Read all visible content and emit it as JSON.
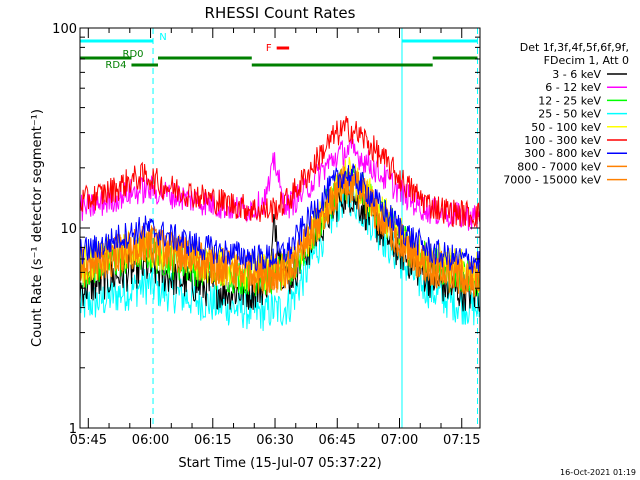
{
  "chart_data": {
    "type": "line",
    "title": "RHESSI Count Rates",
    "xlabel": "Start Time (15-Jul-07 05:37:22)",
    "ylabel": "Count Rate (s⁻¹ detector segment⁻¹)",
    "yscale": "log",
    "ylim": [
      1,
      100
    ],
    "xlim_minutes": [
      5.6,
      102.0
    ],
    "x_ticks": [
      {
        "label": "05:45",
        "minutes": 7.6
      },
      {
        "label": "06:00",
        "minutes": 22.6
      },
      {
        "label": "06:15",
        "minutes": 37.6
      },
      {
        "label": "06:30",
        "minutes": 52.6
      },
      {
        "label": "06:45",
        "minutes": 67.6
      },
      {
        "label": "07:00",
        "minutes": 82.6
      },
      {
        "label": "07:15",
        "minutes": 97.6
      }
    ],
    "y_ticks": [
      {
        "label": "1",
        "value": 1
      },
      {
        "label": "10",
        "value": 10
      },
      {
        "label": "100",
        "value": 100
      }
    ],
    "legend": {
      "placement": "right",
      "header": [
        "Det 1f,3f,4f,5f,6f,9f,",
        "FDecim 1, Att 0"
      ]
    },
    "series": [
      {
        "name": "3 - 6 keV",
        "color": "#000000",
        "x": [
          5.6,
          10,
          15,
          18,
          20,
          22,
          25,
          30,
          35,
          40,
          45,
          48,
          50,
          51.5,
          52.5,
          53.2,
          54.2,
          56,
          60,
          64,
          67,
          69,
          70.5,
          72,
          74,
          77,
          80,
          84,
          87,
          90,
          95,
          100,
          102
        ],
        "values": [
          5,
          5.3,
          5.9,
          6.1,
          6.3,
          6.4,
          6,
          5.5,
          5.1,
          4.9,
          4.8,
          4.9,
          5.2,
          6,
          11,
          9.5,
          6.3,
          5.6,
          7.5,
          10.5,
          13,
          14.5,
          15,
          14,
          12.5,
          10.5,
          8.8,
          7.2,
          6.3,
          5.6,
          5,
          4.7,
          4.6
        ]
      },
      {
        "name": "6 - 12 keV",
        "color": "#ff00ff",
        "x": [
          5.6,
          10,
          15,
          17,
          20,
          22,
          25,
          30,
          35,
          40,
          45,
          48,
          50,
          51.5,
          52.5,
          53.2,
          54.2,
          56,
          60,
          64,
          67,
          69,
          70.5,
          72,
          74,
          77,
          80,
          84,
          87,
          90,
          95,
          100,
          102
        ],
        "values": [
          12.5,
          13,
          14.3,
          15,
          15.3,
          15.7,
          15,
          14.3,
          13.5,
          12.8,
          12.4,
          12.7,
          13.7,
          17,
          22.5,
          19,
          14,
          13,
          15.5,
          19.5,
          22.5,
          24,
          24.5,
          23.5,
          22,
          19.5,
          17,
          14.5,
          13,
          12.2,
          11.6,
          11.3,
          11.2
        ]
      },
      {
        "name": "12 - 25 keV",
        "color": "#00ff00",
        "x": [
          5.6,
          10,
          15,
          18,
          20,
          22,
          25,
          30,
          35,
          40,
          45,
          48,
          50,
          52,
          54,
          56,
          60,
          64,
          67,
          69,
          70.5,
          72,
          74,
          77,
          80,
          84,
          87,
          90,
          95,
          100,
          102
        ],
        "values": [
          6.2,
          6.5,
          7,
          7.3,
          7.5,
          7.6,
          7.2,
          6.7,
          6.3,
          6,
          5.8,
          5.7,
          5.7,
          5.8,
          5.9,
          6,
          8,
          11.5,
          15,
          17,
          17.5,
          16.5,
          15,
          12.5,
          10.5,
          8.5,
          7.3,
          6.6,
          6,
          5.7,
          5.6
        ]
      },
      {
        "name": "25 - 50 keV",
        "color": "#00ffff",
        "x": [
          5.6,
          10,
          15,
          18,
          20,
          22,
          25,
          30,
          35,
          40,
          45,
          48,
          50,
          52,
          54,
          56,
          60,
          64,
          67,
          69,
          70.5,
          72,
          74,
          77,
          80,
          84,
          87,
          90,
          95,
          100,
          102
        ],
        "values": [
          4.1,
          4.3,
          4.7,
          4.9,
          5.1,
          5.2,
          4.9,
          4.6,
          4.3,
          4.1,
          3.9,
          3.8,
          3.8,
          3.9,
          3.9,
          4.1,
          6,
          9,
          12,
          14,
          14.5,
          13.5,
          12,
          10,
          8.2,
          6.5,
          5.5,
          4.9,
          4.3,
          4,
          3.9
        ]
      },
      {
        "name": "50 - 100 keV",
        "color": "#ffff00",
        "x": [
          5.6,
          10,
          15,
          18,
          20,
          22,
          25,
          30,
          35,
          40,
          45,
          48,
          50,
          52,
          54,
          56,
          60,
          64,
          67,
          69,
          70.5,
          72,
          74,
          77,
          80,
          84,
          87,
          90,
          95,
          100,
          102
        ],
        "values": [
          6.6,
          6.9,
          7.5,
          7.8,
          8,
          8.1,
          7.7,
          7.2,
          6.7,
          6.4,
          6.2,
          6.1,
          6.1,
          6.2,
          6.3,
          6.4,
          8.5,
          12,
          15.5,
          17.5,
          18,
          17,
          15.5,
          13,
          11,
          9,
          7.8,
          7,
          6.4,
          6.1,
          6
        ]
      },
      {
        "name": "100 - 300 keV",
        "color": "#ff0000",
        "x": [
          5.6,
          10,
          15,
          17,
          20,
          22,
          25,
          30,
          35,
          40,
          45,
          48,
          50,
          52,
          54,
          56,
          60,
          64,
          67,
          69,
          70.5,
          72,
          74,
          77,
          80,
          84,
          87,
          90,
          95,
          100,
          102
        ],
        "values": [
          13.5,
          14.5,
          16,
          17,
          18,
          18.2,
          16.5,
          15.3,
          14.3,
          13.5,
          12.7,
          12.3,
          12.2,
          12.4,
          13,
          14,
          18,
          24,
          29,
          31,
          31.5,
          30,
          28,
          24,
          20.5,
          16.5,
          14.5,
          13,
          12,
          11.7,
          11.6
        ]
      },
      {
        "name": "300 - 800 keV",
        "color": "#0000ff",
        "x": [
          5.6,
          10,
          15,
          18,
          20,
          22,
          25,
          30,
          35,
          40,
          45,
          48,
          50,
          52,
          54,
          56,
          60,
          64,
          67,
          69,
          70.5,
          72,
          74,
          77,
          80,
          84,
          87,
          90,
          95,
          100,
          102
        ],
        "values": [
          7.6,
          8,
          9,
          9.4,
          9.8,
          10,
          9.4,
          8.7,
          8,
          7.6,
          7.3,
          7.1,
          7.1,
          7.2,
          7.4,
          7.8,
          10.5,
          14,
          17,
          18.5,
          18.5,
          17.5,
          16,
          13.5,
          11.5,
          9.5,
          8.5,
          7.7,
          7.1,
          6.9,
          6.8
        ]
      },
      {
        "name": "800 - 7000 keV",
        "color": "#ff8000",
        "x": [
          5.6,
          10,
          15,
          18,
          20,
          22,
          25,
          30,
          35,
          40,
          45,
          48,
          50,
          52,
          54,
          56,
          60,
          64,
          67,
          69,
          70.5,
          72,
          74,
          77,
          80,
          84,
          87,
          90,
          95,
          100,
          102
        ],
        "values": [
          6.4,
          6.8,
          7.5,
          7.9,
          8.2,
          8.4,
          8,
          7.4,
          6.8,
          6.4,
          6.1,
          5.9,
          5.9,
          6,
          6.1,
          6.3,
          8.3,
          11.5,
          14.5,
          16.5,
          17,
          16,
          14.5,
          12,
          10,
          8.2,
          7.1,
          6.4,
          5.9,
          5.6,
          5.5
        ]
      },
      {
        "name": "7000 - 15000 keV",
        "color": "#ff8000",
        "x": [
          5.6,
          10,
          15,
          18,
          20,
          22,
          25,
          30,
          35,
          40,
          45,
          48,
          50,
          52,
          54,
          56,
          60,
          64,
          67,
          69,
          70.5,
          72,
          74,
          77,
          80,
          84,
          87,
          90,
          95,
          100,
          102
        ],
        "values": [
          6.3,
          6.7,
          7.4,
          7.8,
          8.1,
          8.3,
          7.9,
          7.3,
          6.7,
          6.3,
          6,
          5.8,
          5.8,
          5.9,
          6,
          6.2,
          8.2,
          11.3,
          14.3,
          16.3,
          16.8,
          15.8,
          14.3,
          11.8,
          9.8,
          8,
          6.9,
          6.3,
          5.8,
          5.5,
          5.4
        ]
      }
    ],
    "annotations": {
      "vertical_lines": [
        {
          "minutes": 5.6,
          "color": "#00ffff",
          "style": "solid"
        },
        {
          "minutes": 23.2,
          "color": "#00ffff",
          "style": "dashed"
        },
        {
          "minutes": 83.2,
          "color": "#00ffff",
          "style": "solid"
        },
        {
          "minutes": 101.4,
          "color": "#00ffff",
          "style": "dashed"
        }
      ],
      "bars": [
        {
          "label": "N",
          "color": "#00ffff",
          "row": 1,
          "label_pos": "end",
          "segments": [
            [
              5.6,
              23.2
            ],
            [
              83.2,
              101.4
            ]
          ]
        },
        {
          "label": "F",
          "color": "#ff0000",
          "row": 2,
          "label_pos": "start",
          "segments": [
            [
              53.0,
              56.0
            ]
          ]
        },
        {
          "label": "RD0",
          "color": "#008000",
          "row": 3,
          "label_pos": "above",
          "segments": [
            [
              5.6,
              18.0
            ],
            [
              24.4,
              47.0
            ],
            [
              90.6,
              101.4
            ]
          ]
        },
        {
          "label": "RD4",
          "color": "#008000",
          "row": 4,
          "label_pos": "start",
          "segments": [
            [
              18.0,
              24.4
            ],
            [
              47.0,
              90.6
            ]
          ]
        }
      ]
    },
    "footer_timestamp": "16-Oct-2021 01:19"
  }
}
